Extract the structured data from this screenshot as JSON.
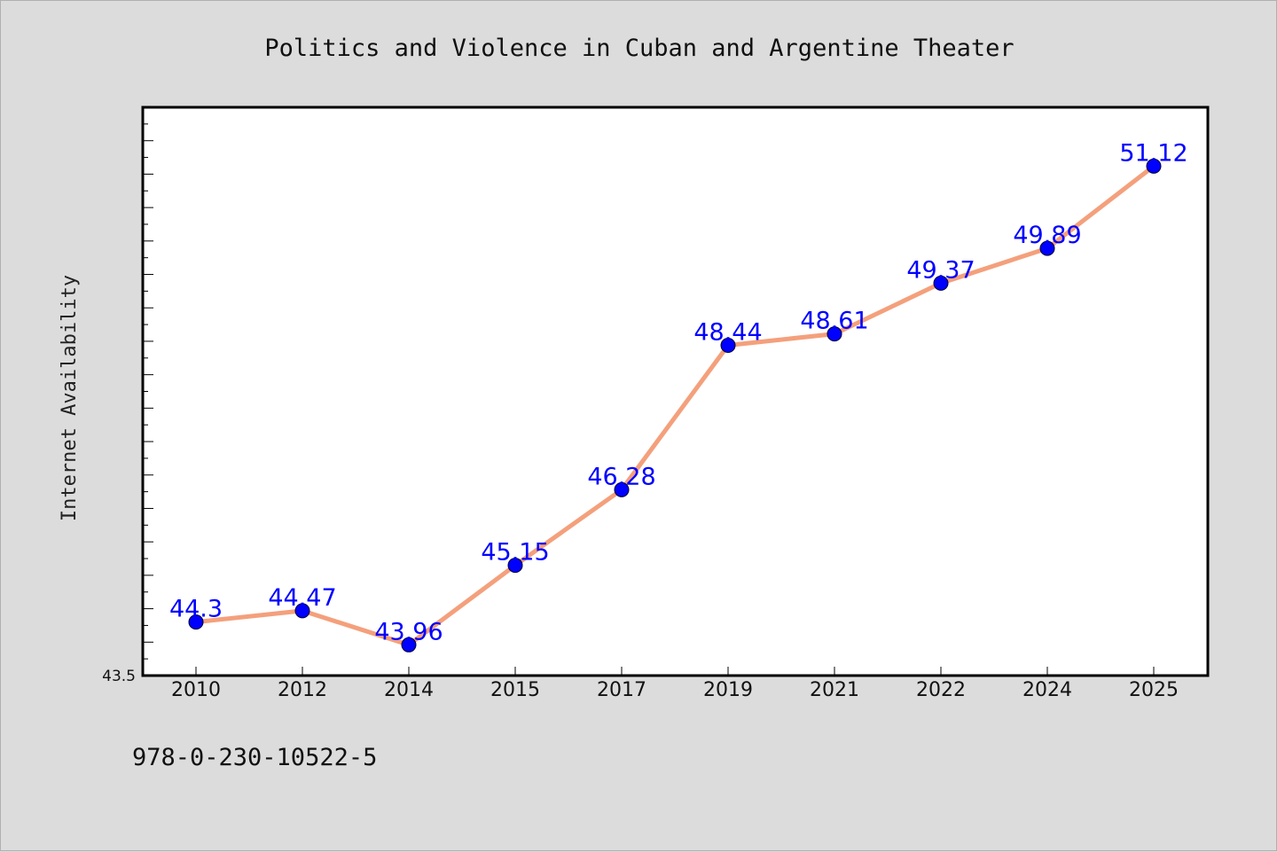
{
  "footer": {
    "isbn": "978-0-230-10522-5"
  },
  "colors": {
    "background": "#dcdcdc",
    "plot_bg": "#ffffff",
    "line": "#f4a07c",
    "marker": "#0000ff",
    "label": "#0000ff"
  },
  "chart_data": {
    "type": "line",
    "title": "Politics and Violence in Cuban and Argentine Theater",
    "xlabel": "",
    "ylabel": "Internet Availability",
    "categories": [
      "2010",
      "2012",
      "2014",
      "2015",
      "2017",
      "2019",
      "2021",
      "2022",
      "2024",
      "2025"
    ],
    "series": [
      {
        "values": [
          44.3,
          44.47,
          43.96,
          45.15,
          46.28,
          48.44,
          48.61,
          49.37,
          49.89,
          51.12
        ]
      }
    ],
    "data_labels": [
      "44.3",
      "44.47",
      "43.96",
      "45.15",
      "46.28",
      "48.44",
      "48.61",
      "49.37",
      "49.89",
      "51.12"
    ],
    "y_tick_labels": [
      "43.5"
    ],
    "ylim": [
      43.5,
      52.0
    ],
    "grid": false,
    "legend": "none"
  }
}
